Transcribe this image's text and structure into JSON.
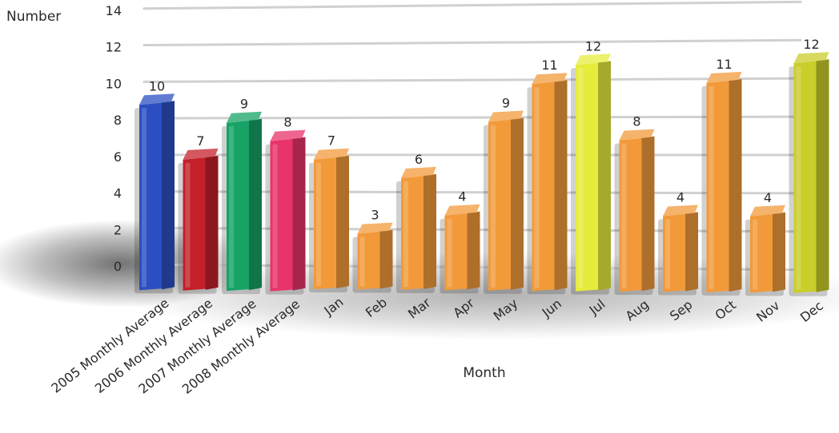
{
  "chart_data": {
    "type": "bar",
    "title": "",
    "xlabel": "Month",
    "ylabel": "Number",
    "ylim": [
      0,
      14
    ],
    "yticks": [
      0,
      2,
      4,
      6,
      8,
      10,
      12,
      14
    ],
    "grid": true,
    "legend": "none",
    "categories": [
      "2005 Monthly Average",
      "2006 Monthly Average",
      "2007 Monthly Average",
      "2008 Monthly Average",
      "Jan",
      "Feb",
      "Mar",
      "Apr",
      "May",
      "Jun",
      "Jul",
      "Aug",
      "Sep",
      "Oct",
      "Nov",
      "Dec"
    ],
    "values": [
      10,
      7,
      9,
      8,
      7,
      3,
      6,
      4,
      9,
      11,
      12,
      8,
      4,
      11,
      4,
      12
    ],
    "colors": [
      "#2b4fc2",
      "#c4202a",
      "#17a366",
      "#e8336b",
      "#f29a3a",
      "#f29a3a",
      "#f29a3a",
      "#f29a3a",
      "#f29a3a",
      "#f29a3a",
      "#e7ec3c",
      "#f29a3a",
      "#f29a3a",
      "#f29a3a",
      "#f29a3a",
      "#c9ce2a"
    ]
  }
}
